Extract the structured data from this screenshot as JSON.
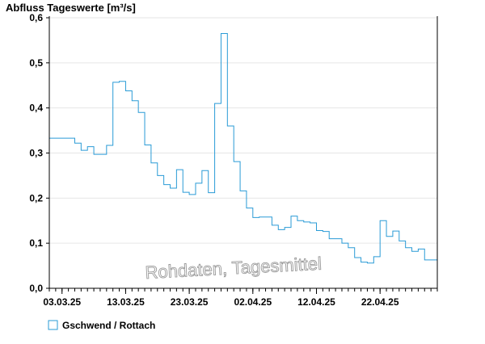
{
  "chart_data": {
    "type": "line",
    "step": true,
    "title": "Abfluss Tageswerte [m³/s]",
    "xlabel": "",
    "ylabel": "",
    "x_start": "01.03.25",
    "x_end": "01.05.25",
    "x_ticks": [
      "03.03.25",
      "13.03.25",
      "23.03.25",
      "02.04.25",
      "12.04.25",
      "22.04.25"
    ],
    "y_ticks": [
      "0,0",
      "0,1",
      "0,2",
      "0,3",
      "0,4",
      "0,5",
      "0,6"
    ],
    "ylim": [
      0,
      0.6
    ],
    "grid": true,
    "watermark": "Rohdaten, Tagesmittel",
    "series": [
      {
        "name": "Gschwend / Rottach",
        "color": "#2a9bd6",
        "x": [
          "01.03.25",
          "02.03.25",
          "03.03.25",
          "04.03.25",
          "05.03.25",
          "06.03.25",
          "07.03.25",
          "08.03.25",
          "09.03.25",
          "10.03.25",
          "11.03.25",
          "12.03.25",
          "13.03.25",
          "14.03.25",
          "15.03.25",
          "16.03.25",
          "17.03.25",
          "18.03.25",
          "19.03.25",
          "20.03.25",
          "21.03.25",
          "22.03.25",
          "23.03.25",
          "24.03.25",
          "25.03.25",
          "26.03.25",
          "27.03.25",
          "28.03.25",
          "29.03.25",
          "30.03.25",
          "31.03.25",
          "01.04.25",
          "02.04.25",
          "03.04.25",
          "04.04.25",
          "05.04.25",
          "06.04.25",
          "07.04.25",
          "08.04.25",
          "09.04.25",
          "10.04.25",
          "11.04.25",
          "12.04.25",
          "13.04.25",
          "14.04.25",
          "15.04.25",
          "16.04.25",
          "17.04.25",
          "18.04.25",
          "19.04.25",
          "20.04.25",
          "21.04.25",
          "22.04.25",
          "23.04.25",
          "24.04.25",
          "25.04.25",
          "26.04.25",
          "27.04.25",
          "28.04.25",
          "29.04.25",
          "30.04.25"
        ],
        "values": [
          0.333,
          0.333,
          0.333,
          0.333,
          0.322,
          0.306,
          0.314,
          0.297,
          0.297,
          0.317,
          0.457,
          0.459,
          0.438,
          0.416,
          0.39,
          0.318,
          0.278,
          0.25,
          0.23,
          0.222,
          0.263,
          0.213,
          0.208,
          0.233,
          0.261,
          0.212,
          0.41,
          0.565,
          0.36,
          0.281,
          0.216,
          0.178,
          0.157,
          0.158,
          0.158,
          0.14,
          0.13,
          0.135,
          0.16,
          0.15,
          0.147,
          0.145,
          0.128,
          0.126,
          0.11,
          0.11,
          0.1,
          0.09,
          0.068,
          0.058,
          0.056,
          0.07,
          0.15,
          0.115,
          0.127,
          0.105,
          0.09,
          0.082,
          0.087,
          0.063,
          0.063
        ]
      }
    ]
  }
}
